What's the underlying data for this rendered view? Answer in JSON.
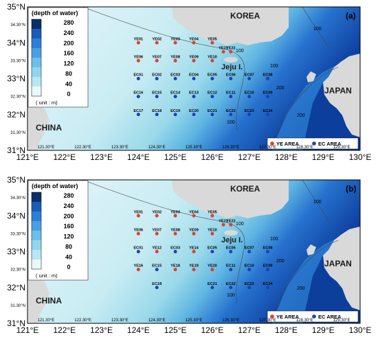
{
  "colorbar": {
    "title": "(depth of water)",
    "ticks": [
      "280",
      "240",
      "200",
      "160",
      "120",
      "80",
      "40",
      "0"
    ],
    "unit": "( unit : m)",
    "colors": [
      "#08306b",
      "#1a5cb8",
      "#2b7fd9",
      "#4a9fe3",
      "#6cbfe9",
      "#8fd6ee",
      "#b6e7f3",
      "#e9f8fb"
    ]
  },
  "axes": {
    "lon_major": [
      "121°E",
      "122°E",
      "123°E",
      "124°E",
      "125°E",
      "126°E",
      "127°E",
      "128°E",
      "129°E",
      "130°E"
    ],
    "lon_minor": [
      "121.30°E",
      "122.30°E",
      "123.30°E",
      "124.30°E",
      "125.30°E",
      "126.30°E",
      "127.30°E",
      "128.30°E",
      "129.30°E"
    ],
    "lat_major": [
      "35°N",
      "34°N",
      "33°N",
      "32°N",
      "31°N"
    ],
    "lat_minor": [
      "34.30°N",
      "33.30°N",
      "32.30°N",
      "31.30°N"
    ]
  },
  "places": {
    "korea": "KOREA",
    "japan": "JAPAN",
    "china": "CHINA",
    "jeju": "Jeju I."
  },
  "contours": {
    "c100": "100",
    "c200": "200"
  },
  "legend": {
    "ye": "YE AREA",
    "ec": "EC AREA",
    "ye_color": "#e8392b",
    "ec_color": "#1f3fb8"
  },
  "panels": [
    {
      "tag": "(a)",
      "stations": [
        {
          "name": "YE01",
          "lon": 124.0,
          "lat": 34.0,
          "area": "YE"
        },
        {
          "name": "YE02",
          "lon": 124.5,
          "lat": 34.0,
          "area": "YE"
        },
        {
          "name": "YE03",
          "lon": 125.0,
          "lat": 34.0,
          "area": "YE"
        },
        {
          "name": "YE04",
          "lon": 125.5,
          "lat": 34.0,
          "area": "YE"
        },
        {
          "name": "YE05",
          "lon": 126.0,
          "lat": 34.0,
          "area": "YE"
        },
        {
          "name": "YE21",
          "lon": 126.3,
          "lat": 33.75,
          "area": "YE"
        },
        {
          "name": "YE22",
          "lon": 126.5,
          "lat": 33.75,
          "area": "YE"
        },
        {
          "name": "YE06",
          "lon": 124.0,
          "lat": 33.5,
          "area": "YE"
        },
        {
          "name": "YE07",
          "lon": 124.5,
          "lat": 33.5,
          "area": "YE"
        },
        {
          "name": "YE08",
          "lon": 125.0,
          "lat": 33.5,
          "area": "YE"
        },
        {
          "name": "YE09",
          "lon": 125.5,
          "lat": 33.5,
          "area": "YE"
        },
        {
          "name": "YE10",
          "lon": 126.0,
          "lat": 33.5,
          "area": "YE"
        },
        {
          "name": "EC01",
          "lon": 124.0,
          "lat": 33.0,
          "area": "EC"
        },
        {
          "name": "EC02",
          "lon": 124.5,
          "lat": 33.0,
          "area": "EC"
        },
        {
          "name": "EC03",
          "lon": 125.0,
          "lat": 33.0,
          "area": "EC"
        },
        {
          "name": "EC04",
          "lon": 125.5,
          "lat": 33.0,
          "area": "EC"
        },
        {
          "name": "EC05",
          "lon": 126.0,
          "lat": 33.0,
          "area": "EC"
        },
        {
          "name": "EC06",
          "lon": 126.5,
          "lat": 33.0,
          "area": "EC"
        },
        {
          "name": "EC07",
          "lon": 127.0,
          "lat": 33.0,
          "area": "EC"
        },
        {
          "name": "EC08",
          "lon": 127.5,
          "lat": 33.0,
          "area": "EC"
        },
        {
          "name": "EC16",
          "lon": 124.0,
          "lat": 32.5,
          "area": "EC"
        },
        {
          "name": "EC15",
          "lon": 124.5,
          "lat": 32.5,
          "area": "EC"
        },
        {
          "name": "EC14",
          "lon": 125.0,
          "lat": 32.5,
          "area": "EC"
        },
        {
          "name": "EC13",
          "lon": 125.5,
          "lat": 32.5,
          "area": "EC"
        },
        {
          "name": "EC12",
          "lon": 126.0,
          "lat": 32.5,
          "area": "EC"
        },
        {
          "name": "EC11",
          "lon": 126.5,
          "lat": 32.5,
          "area": "EC"
        },
        {
          "name": "EC10",
          "lon": 127.0,
          "lat": 32.5,
          "area": "EC"
        },
        {
          "name": "EC09",
          "lon": 127.5,
          "lat": 32.5,
          "area": "EC"
        },
        {
          "name": "EC17",
          "lon": 124.0,
          "lat": 32.0,
          "area": "EC"
        },
        {
          "name": "EC18",
          "lon": 124.5,
          "lat": 32.0,
          "area": "EC"
        },
        {
          "name": "EC19",
          "lon": 125.0,
          "lat": 32.0,
          "area": "EC"
        },
        {
          "name": "EC20",
          "lon": 125.5,
          "lat": 32.0,
          "area": "EC"
        },
        {
          "name": "EC21",
          "lon": 126.0,
          "lat": 32.0,
          "area": "EC"
        },
        {
          "name": "EC22",
          "lon": 126.5,
          "lat": 32.0,
          "area": "EC"
        },
        {
          "name": "EC23",
          "lon": 127.0,
          "lat": 32.0,
          "area": "EC"
        },
        {
          "name": "EC24",
          "lon": 127.5,
          "lat": 32.0,
          "area": "EC"
        }
      ]
    },
    {
      "tag": "(b)",
      "stations": [
        {
          "name": "YE01",
          "lon": 124.0,
          "lat": 34.0,
          "area": "YE"
        },
        {
          "name": "YE02",
          "lon": 124.5,
          "lat": 34.0,
          "area": "YE"
        },
        {
          "name": "YE03",
          "lon": 125.0,
          "lat": 34.0,
          "area": "YE"
        },
        {
          "name": "YE04",
          "lon": 125.5,
          "lat": 34.0,
          "area": "YE"
        },
        {
          "name": "YE05",
          "lon": 126.0,
          "lat": 34.0,
          "area": "YE"
        },
        {
          "name": "YE21",
          "lon": 126.3,
          "lat": 33.75,
          "area": "YE"
        },
        {
          "name": "YE22",
          "lon": 126.5,
          "lat": 33.75,
          "area": "YE"
        },
        {
          "name": "YE06",
          "lon": 124.0,
          "lat": 33.5,
          "area": "YE"
        },
        {
          "name": "YE07",
          "lon": 124.5,
          "lat": 33.5,
          "area": "YE"
        },
        {
          "name": "YE08",
          "lon": 125.0,
          "lat": 33.5,
          "area": "YE"
        },
        {
          "name": "YE09",
          "lon": 125.5,
          "lat": 33.5,
          "area": "YE"
        },
        {
          "name": "YE10",
          "lon": 126.0,
          "lat": 33.5,
          "area": "YE"
        },
        {
          "name": "EC01",
          "lon": 124.0,
          "lat": 33.0,
          "area": "EC"
        },
        {
          "name": "YE12",
          "lon": 124.5,
          "lat": 33.0,
          "area": "YE"
        },
        {
          "name": "EC03",
          "lon": 125.0,
          "lat": 33.0,
          "area": "EC"
        },
        {
          "name": "YE14",
          "lon": 125.5,
          "lat": 33.0,
          "area": "YE"
        },
        {
          "name": "EC05",
          "lon": 126.0,
          "lat": 33.0,
          "area": "EC"
        },
        {
          "name": "EC06",
          "lon": 126.5,
          "lat": 33.0,
          "area": "EC"
        },
        {
          "name": "EC07",
          "lon": 127.0,
          "lat": 33.0,
          "area": "EC"
        },
        {
          "name": "EC08",
          "lon": 127.5,
          "lat": 33.0,
          "area": "EC"
        },
        {
          "name": "YE16",
          "lon": 124.0,
          "lat": 32.5,
          "area": "YE"
        },
        {
          "name": "EC15",
          "lon": 124.5,
          "lat": 32.5,
          "area": "EC"
        },
        {
          "name": "YE18",
          "lon": 125.0,
          "lat": 32.5,
          "area": "YE"
        },
        {
          "name": "YE19",
          "lon": 125.5,
          "lat": 32.5,
          "area": "YE"
        },
        {
          "name": "YE20",
          "lon": 126.0,
          "lat": 32.5,
          "area": "YE"
        },
        {
          "name": "EC11",
          "lon": 126.5,
          "lat": 32.5,
          "area": "EC"
        },
        {
          "name": "EC10",
          "lon": 127.0,
          "lat": 32.5,
          "area": "EC"
        },
        {
          "name": "EC09",
          "lon": 127.5,
          "lat": 32.5,
          "area": "EC"
        },
        {
          "name": "EC18",
          "lon": 124.5,
          "lat": 32.0,
          "area": "EC"
        },
        {
          "name": "EC21",
          "lon": 126.0,
          "lat": 32.0,
          "area": "EC"
        },
        {
          "name": "EC22",
          "lon": 126.5,
          "lat": 32.0,
          "area": "EC"
        },
        {
          "name": "EC23",
          "lon": 127.0,
          "lat": 32.0,
          "area": "EC"
        },
        {
          "name": "EC24",
          "lon": 127.5,
          "lat": 32.0,
          "area": "EC"
        }
      ]
    }
  ]
}
